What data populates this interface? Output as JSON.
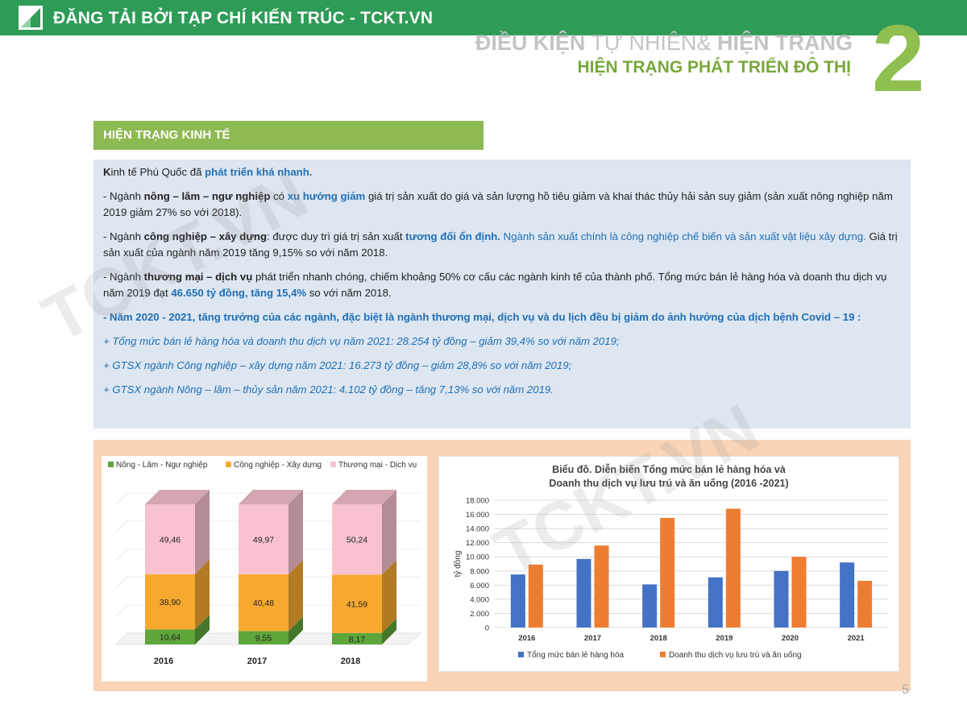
{
  "topbar": {
    "brand": "ĐĂNG TẢI BỞI TẠP CHÍ KIẾN TRÚC - TCKT.VN",
    "bg_color": "#2e9b57",
    "logo": "tckt-logo-icon"
  },
  "header": {
    "line1_bold_a": "ĐIỀU KIỆN",
    "line1_thin": " TỰ NHIÊN& ",
    "line1_bold_b": "HIỆN TRẠNG",
    "line2": "HIỆN TRẠNG PHÁT TRIỂN ĐÔ THỊ",
    "chapter_number": "2"
  },
  "section_title": "HIỆN TRẠNG KINH TẾ",
  "body": {
    "intro": {
      "k": "K",
      "a": "inh tế Phú Quốc đã ",
      "b": "phát triển khá nhanh."
    },
    "p1": {
      "a": "-     Ngành ",
      "b": "nông – lâm – ngư nghiệp",
      "c": " có ",
      "d": "xu hướng giảm",
      "e": " giá trị sản xuất do giá và sản lượng hồ tiêu giảm và khai thác thủy hải sản suy giảm (sản xuất nông nghiệp năm 2019 giảm 27%  so với 2018)."
    },
    "p2": {
      "a": "-     Ngành ",
      "b": "công nghiệp – xây dựng",
      "c": ": được duy trì giá trị sản xuất ",
      "d": "tương đối ổn định.",
      "e": " Ngành sản xuất chính là công nghiệp chế biến và sản xuất vật liệu xây dựng.",
      "f": " Giá trị sản xuất của ngành năm 2019 tăng 9,15% so với năm 2018."
    },
    "p3": {
      "a": "-     Ngành ",
      "b": "thương mại – dịch vụ",
      "c": " phát triển nhanh chóng, chiếm khoảng 50% cơ cấu các ngành kinh tế của thành phố. Tổng mức bán lẻ hàng hóa và doanh thu dịch vụ năm 2019 đạt ",
      "d": "46.650 tỷ đồng, tăng 15,4%",
      "e": " so với năm 2018."
    },
    "p4": "-     Năm 2020 - 2021, tăng trưởng của các ngành, đặc biệt là ngành thương mại, dịch vụ và du lịch đều bị giảm do ảnh hưởng của dịch bệnh Covid – 19 :",
    "bullets": [
      "+ Tổng mức bán lẻ hàng hóa và doanh thu dịch vụ năm 2021: 28.254 tỷ đồng – giảm 39,4% so với năm 2019;",
      "+ GTSX ngành Công nghiệp – xây dựng năm 2021: 16.273 tỷ đồng – giảm 28,8% so với năm 2019;",
      "+ GTSX ngành Nông – lâm – thủy sản năm 2021: 4.102 tỷ đồng – tăng 7,13% so với năm 2019."
    ]
  },
  "watermark": "TCKT.VN",
  "page_number": "5",
  "chart_data": [
    {
      "type": "bar",
      "stacked": true,
      "categories": [
        "2016",
        "2017",
        "2018"
      ],
      "series": [
        {
          "name": "Nông - Lâm - Ngư nghiệp",
          "values": [
            10.64,
            9.55,
            8.17
          ],
          "labels": [
            "10,64",
            "9,55",
            "8,17"
          ],
          "color": "#5ea53a"
        },
        {
          "name": "Công nghiệp - Xây dựng",
          "values": [
            38.9,
            40.48,
            41.59
          ],
          "labels": [
            "38,90",
            "40,48",
            "41,59"
          ],
          "color": "#f7a92f"
        },
        {
          "name": "Thương mại - Dịch vụ",
          "values": [
            49.46,
            49.97,
            50.24
          ],
          "labels": [
            "49,46",
            "49,97",
            "50,24"
          ],
          "color": "#f8c3cf"
        }
      ],
      "legend": "top",
      "ylim": [
        0,
        100
      ]
    },
    {
      "type": "bar",
      "title": "Biểu đồ. Diễn biến Tổng mức bán lẻ hàng hóa và",
      "subtitle": "Doanh thu dịch vụ lưu trú và ăn uống (2016 -2021)",
      "ylabel": "tỷ đồng",
      "categories": [
        "2016",
        "2017",
        "2018",
        "2019",
        "2020",
        "2021"
      ],
      "series": [
        {
          "name": "Tổng mức bán lẻ hàng hóa",
          "values": [
            7500,
            9700,
            6100,
            7100,
            8000,
            9200
          ],
          "color": "#4472c4"
        },
        {
          "name": "Doanh thu dịch vụ lưu trú và ăn uống",
          "values": [
            8900,
            11600,
            15500,
            16800,
            10000,
            6600
          ],
          "color": "#ed7d31"
        }
      ],
      "ylim": [
        0,
        18000
      ],
      "yticks": [
        "0",
        "2.000",
        "4.000",
        "6.000",
        "8.000",
        "10.000",
        "12.000",
        "14.000",
        "16.000",
        "18.000"
      ],
      "grid": true,
      "legend": "bottom"
    }
  ]
}
